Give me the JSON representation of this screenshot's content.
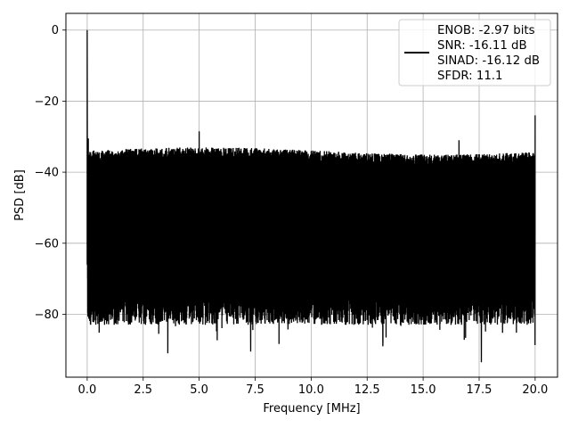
{
  "chart_data": {
    "type": "line",
    "title": "",
    "xlabel": "Frequency [MHz]",
    "ylabel": "PSD [dB]",
    "xlim": [
      -0.95,
      21.0
    ],
    "ylim": [
      -97.7,
      4.7
    ],
    "xticks": [
      0.0,
      2.5,
      5.0,
      7.5,
      10.0,
      12.5,
      15.0,
      17.5,
      20.0
    ],
    "xtick_labels": [
      "0.0",
      "2.5",
      "5.0",
      "7.5",
      "10.0",
      "12.5",
      "15.0",
      "17.5",
      "20.0"
    ],
    "yticks": [
      0,
      -20,
      -40,
      -60,
      -80
    ],
    "ytick_labels": [
      "0",
      "−20",
      "−40",
      "−60",
      "−80"
    ],
    "grid": true,
    "legend_position": "top-right",
    "series": [
      {
        "name": "ENOB: -2.97 bits\nSNR: -16.11 dB\nSINAD: -16.12 dB\nSFDR: 11.1",
        "color": "#000000",
        "x_range": [
          0.0,
          20.0
        ],
        "noise_floor_upper_db": -34,
        "noise_floor_lower_db": -78,
        "peaks": [
          {
            "x": 0.0,
            "y": 0.0
          },
          {
            "x": 0.05,
            "y": -30.5
          },
          {
            "x": 5.0,
            "y": -28.5
          },
          {
            "x": 16.6,
            "y": -31.0
          },
          {
            "x": 20.0,
            "y": -24.0
          }
        ],
        "troughs": [
          {
            "x": 3.6,
            "y": -91.0
          },
          {
            "x": 7.3,
            "y": -90.5
          },
          {
            "x": 13.2,
            "y": -89.0
          },
          {
            "x": 17.6,
            "y": -93.5
          }
        ]
      }
    ]
  }
}
